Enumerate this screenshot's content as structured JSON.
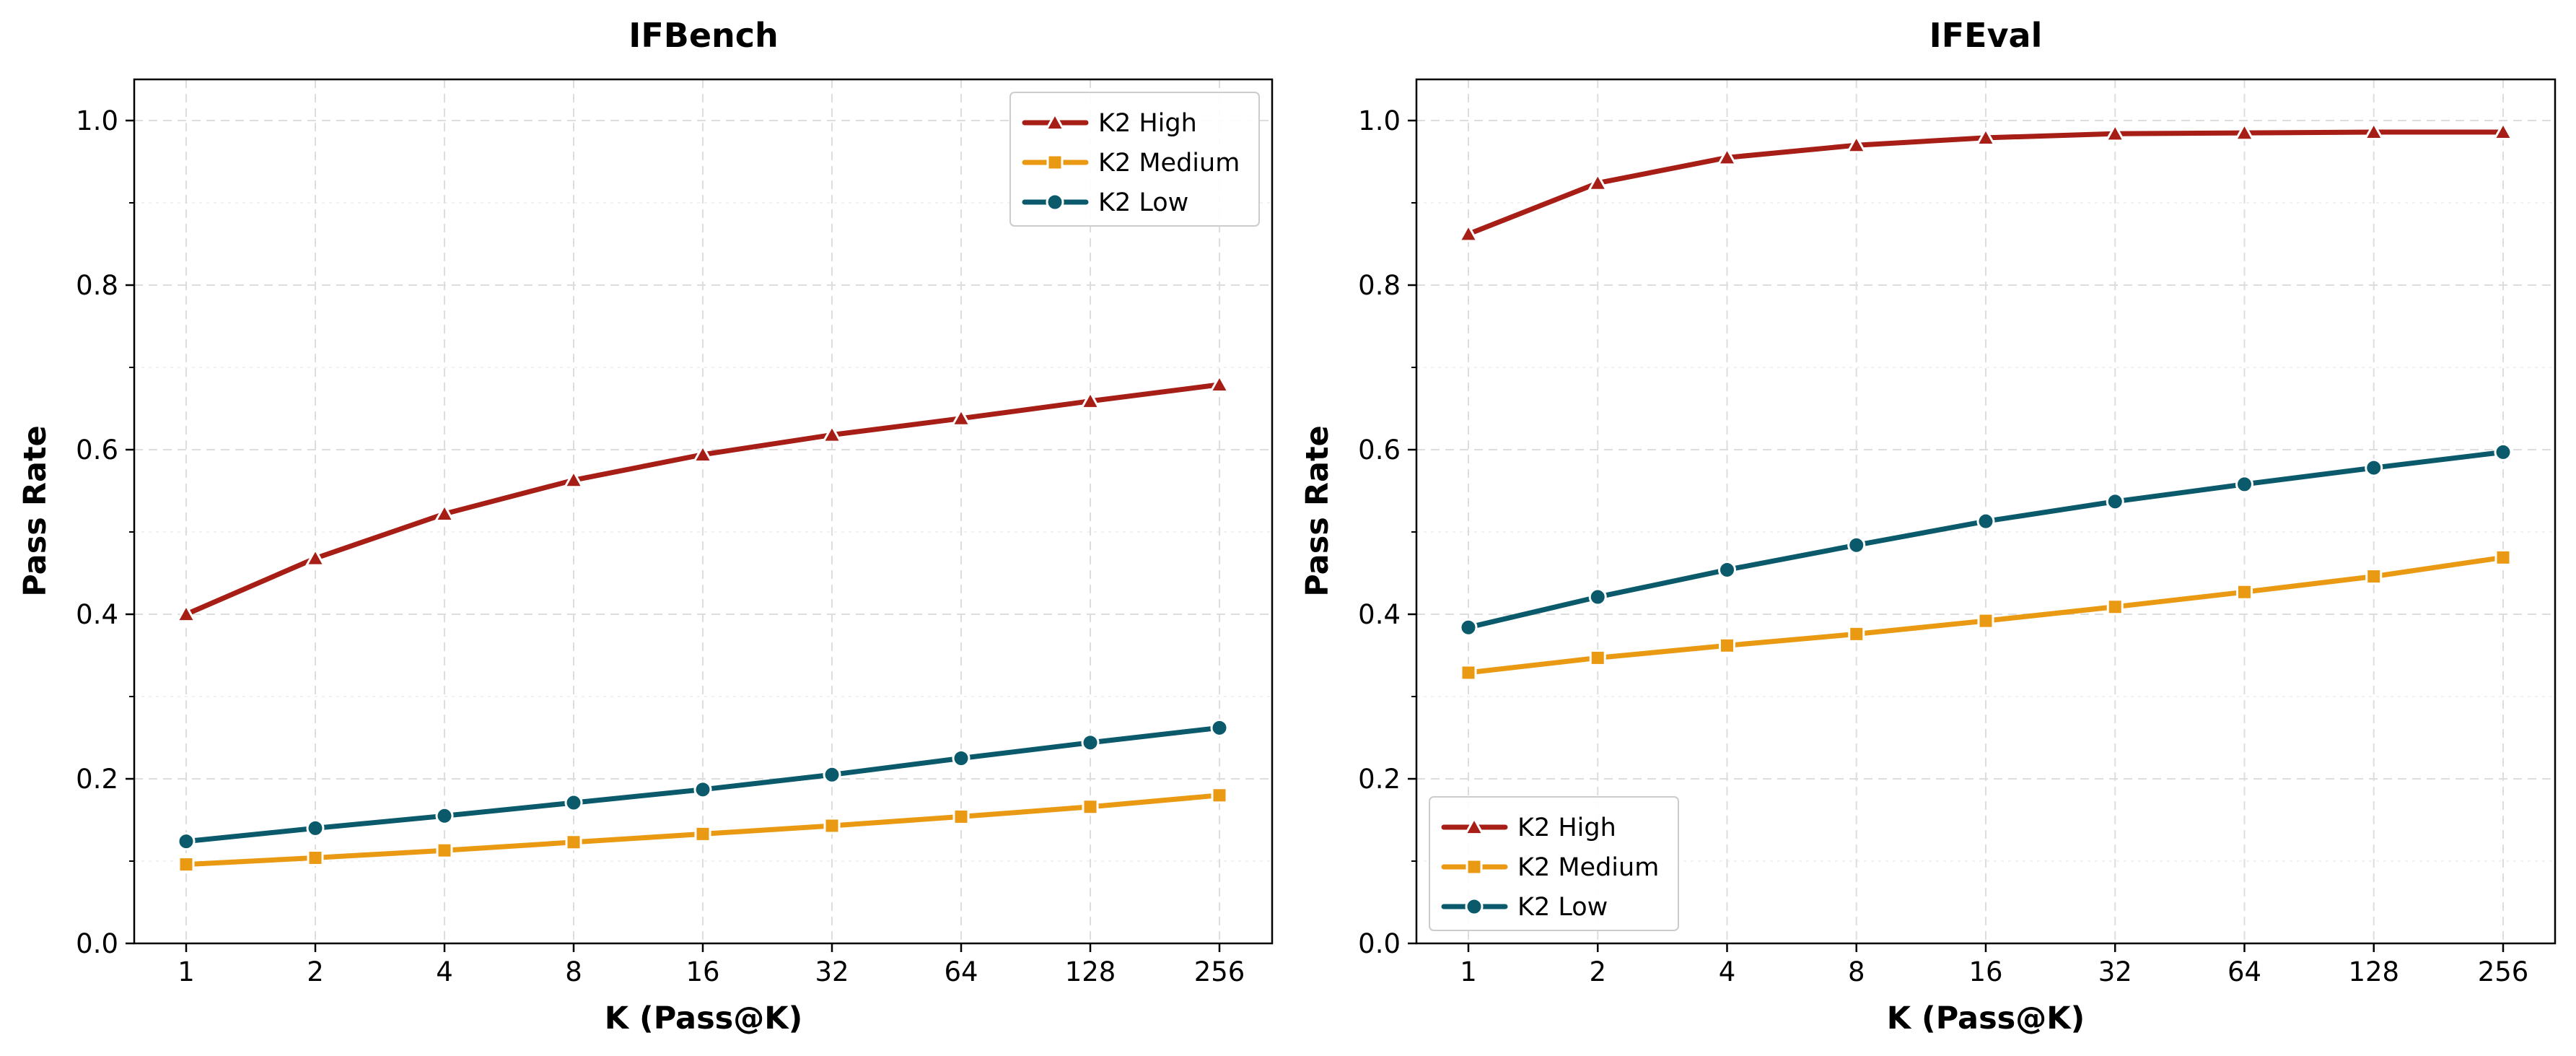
{
  "chart_data": [
    {
      "type": "line",
      "title": "IFBench",
      "xlabel": "K (Pass@K)",
      "ylabel": "Pass Rate",
      "categories": [
        "1",
        "2",
        "4",
        "8",
        "16",
        "32",
        "64",
        "128",
        "256"
      ],
      "ylim": [
        0,
        1.05
      ],
      "yticks": [
        "0.0",
        "0.2",
        "0.4",
        "0.6",
        "0.8",
        "1.0"
      ],
      "grid": true,
      "legend_position": "top-right",
      "series": [
        {
          "name": "K2 High",
          "color": "#a61e16",
          "marker": "triangle",
          "values": [
            0.4,
            0.468,
            0.522,
            0.563,
            0.594,
            0.618,
            0.638,
            0.659,
            0.679
          ]
        },
        {
          "name": "K2 Medium",
          "color": "#ea9a12",
          "marker": "square",
          "values": [
            0.096,
            0.104,
            0.113,
            0.123,
            0.133,
            0.143,
            0.154,
            0.166,
            0.18
          ]
        },
        {
          "name": "K2 Low",
          "color": "#0a5a6b",
          "marker": "circle",
          "values": [
            0.124,
            0.14,
            0.155,
            0.171,
            0.187,
            0.205,
            0.225,
            0.244,
            0.262
          ]
        }
      ]
    },
    {
      "type": "line",
      "title": "IFEval",
      "xlabel": "K (Pass@K)",
      "ylabel": "Pass Rate",
      "categories": [
        "1",
        "2",
        "4",
        "8",
        "16",
        "32",
        "64",
        "128",
        "256"
      ],
      "ylim": [
        0,
        1.05
      ],
      "yticks": [
        "0.0",
        "0.2",
        "0.4",
        "0.6",
        "0.8",
        "1.0"
      ],
      "grid": true,
      "legend_position": "bottom-left",
      "series": [
        {
          "name": "K2 High",
          "color": "#a61e16",
          "marker": "triangle",
          "values": [
            0.862,
            0.924,
            0.955,
            0.97,
            0.979,
            0.984,
            0.985,
            0.986,
            0.986
          ]
        },
        {
          "name": "K2 Medium",
          "color": "#ea9a12",
          "marker": "square",
          "values": [
            0.329,
            0.347,
            0.362,
            0.376,
            0.392,
            0.409,
            0.427,
            0.446,
            0.469
          ]
        },
        {
          "name": "K2 Low",
          "color": "#0a5a6b",
          "marker": "circle",
          "values": [
            0.384,
            0.421,
            0.454,
            0.484,
            0.513,
            0.537,
            0.558,
            0.578,
            0.597
          ]
        }
      ]
    }
  ]
}
